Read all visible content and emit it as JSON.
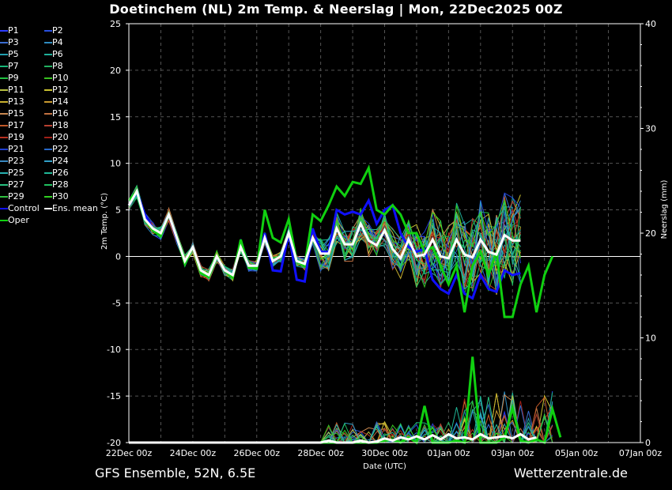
{
  "title": "Doetinchem  (NL)  2m Temp. & Neerslag | Mon, 22Dec2025 00Z",
  "footer": {
    "left": "GFS Ensemble, 52N, 6.5E",
    "right": "Wetterzentrale.de"
  },
  "legend": [
    {
      "label": "P1",
      "color": "#2c3cff"
    },
    {
      "label": "P2",
      "color": "#2850e0"
    },
    {
      "label": "P3",
      "color": "#3a6cd0"
    },
    {
      "label": "P4",
      "color": "#2f8cc0"
    },
    {
      "label": "P5",
      "color": "#22a0b0"
    },
    {
      "label": "P6",
      "color": "#1fb09a"
    },
    {
      "label": "P7",
      "color": "#18b878"
    },
    {
      "label": "P8",
      "color": "#22b060"
    },
    {
      "label": "P9",
      "color": "#20c040"
    },
    {
      "label": "P10",
      "color": "#38c020"
    },
    {
      "label": "P11",
      "color": "#b8c040"
    },
    {
      "label": "P12",
      "color": "#c8c030"
    },
    {
      "label": "P13",
      "color": "#c8b030"
    },
    {
      "label": "P14",
      "color": "#c89a30"
    },
    {
      "label": "P15",
      "color": "#c88850"
    },
    {
      "label": "P16",
      "color": "#c07040"
    },
    {
      "label": "P17",
      "color": "#c05828"
    },
    {
      "label": "P18",
      "color": "#b84030"
    },
    {
      "label": "P19",
      "color": "#b83020"
    },
    {
      "label": "P20",
      "color": "#a02018"
    },
    {
      "label": "P21",
      "color": "#2040d0"
    },
    {
      "label": "P22",
      "color": "#2868c8"
    },
    {
      "label": "P23",
      "color": "#3888c0"
    },
    {
      "label": "P24",
      "color": "#30a0c8"
    },
    {
      "label": "P25",
      "color": "#28b0b0"
    },
    {
      "label": "P26",
      "color": "#20b898"
    },
    {
      "label": "P27",
      "color": "#28c080"
    },
    {
      "label": "P28",
      "color": "#20c060"
    },
    {
      "label": "P29",
      "color": "#30c040"
    },
    {
      "label": "P30",
      "color": "#30d020"
    },
    {
      "label": "Control",
      "color": "#1010ff"
    },
    {
      "label": "Ens. mean",
      "color": "#ffffff"
    },
    {
      "label": "Oper",
      "color": "#10d010"
    }
  ],
  "chart_data": {
    "type": "line",
    "xlabel": "Date (UTC)",
    "ylabel": "2m Temp. (°C)",
    "y2label": "Neerslag (mm)",
    "ylim": [
      -20,
      25
    ],
    "y2lim": [
      0,
      40
    ],
    "xlim_days": [
      0,
      16
    ],
    "yticks": [
      25,
      20,
      15,
      10,
      5,
      0,
      -5,
      -10,
      -15,
      -20
    ],
    "y2ticks": [
      40,
      30,
      20,
      10,
      0
    ],
    "xticks": [
      {
        "day": 0,
        "label": "22Dec 00z"
      },
      {
        "day": 2,
        "label": "24Dec 00z"
      },
      {
        "day": 4,
        "label": "26Dec 00z"
      },
      {
        "day": 6,
        "label": "28Dec 00z"
      },
      {
        "day": 8,
        "label": "30Dec 00z"
      },
      {
        "day": 10,
        "label": "01Jan 00z"
      },
      {
        "day": 12,
        "label": "03Jan 00z"
      },
      {
        "day": 14,
        "label": "05Jan 00z"
      },
      {
        "day": 16,
        "label": "07Jan 00z"
      }
    ],
    "grid": true,
    "zero_line": true,
    "step_hours": 6,
    "ens_mean": [
      5.5,
      7,
      4,
      3,
      2.5,
      4.5,
      2,
      -0.5,
      1,
      -1.5,
      -2,
      0,
      -1.5,
      -2,
      1,
      -1,
      -1,
      2,
      -0.5,
      0,
      2.5,
      -0.5,
      -0.8,
      2,
      0.3,
      0.3,
      3,
      1.3,
      1.3,
      3.5,
      1.7,
      1.2,
      2.8,
      0.8,
      -0.2,
      1.8,
      0,
      0.2,
      1.8,
      0,
      -0.2,
      1.8,
      0.2,
      -0.1,
      1.8,
      0.5,
      0.2,
      2.3,
      1.7,
      1.7
    ],
    "oper": [
      6,
      7,
      4,
      2.8,
      2.2,
      4.5,
      2,
      -0.8,
      1,
      -1.8,
      -2.2,
      0,
      -1.5,
      -2.2,
      1.8,
      -1.2,
      -1.3,
      5,
      2,
      1.5,
      4,
      -0.5,
      -1,
      4.5,
      3.8,
      5.5,
      7.5,
      6.5,
      8,
      7.8,
      9.5,
      5,
      4.5,
      5.5,
      4.5,
      2.5,
      2.5,
      0.5,
      1,
      -1,
      -3,
      -1,
      -6,
      -1,
      0.5,
      -2,
      0.5,
      -6.5,
      -6.5,
      -3,
      -1,
      -6,
      -2,
      0
    ],
    "control": [
      5.5,
      7,
      4.5,
      3,
      2.5,
      4.5,
      1.8,
      -0.6,
      1,
      -1.8,
      -2,
      0,
      -1.5,
      -2,
      1.5,
      -1,
      -1,
      2.5,
      -1.5,
      -1.6,
      2.5,
      -2.5,
      -2.7,
      3,
      0.5,
      0.5,
      5,
      4.5,
      4.8,
      4.5,
      6,
      3.5,
      5,
      5.5,
      2.5,
      1,
      0.5,
      0.8,
      -2.5,
      -3.5,
      -4,
      -2,
      -4,
      -4.5,
      -2,
      -3.5,
      -3.8,
      -1.5,
      -2,
      -1.8
    ],
    "precip_oper": [
      0,
      0,
      0,
      0,
      0,
      0,
      0,
      0,
      0,
      0,
      0,
      0,
      0,
      0,
      0,
      0,
      0,
      0,
      0,
      0,
      0,
      0,
      0,
      0,
      0,
      0,
      0,
      0,
      0,
      0,
      0,
      0,
      0.2,
      0.3,
      0,
      0.5,
      0,
      3.5,
      0,
      0,
      0,
      0.2,
      0,
      8.2,
      0,
      0,
      0,
      0.5,
      3.3,
      0.2,
      0,
      0.3,
      0,
      3.2,
      0.5
    ],
    "precip_mean": [
      0,
      0,
      0,
      0,
      0,
      0,
      0,
      0,
      0,
      0,
      0,
      0,
      0,
      0,
      0,
      0,
      0,
      0,
      0,
      0,
      0,
      0,
      0,
      0,
      0,
      0.2,
      0,
      0,
      0,
      0.2,
      0,
      0.1,
      0.4,
      0.2,
      0.5,
      0.3,
      0.6,
      0.3,
      0.7,
      0.3,
      0.8,
      0.4,
      0.5,
      0.3,
      0.8,
      0.4,
      0.5,
      0.6,
      0.4,
      0.8,
      0.3,
      0.5
    ]
  }
}
